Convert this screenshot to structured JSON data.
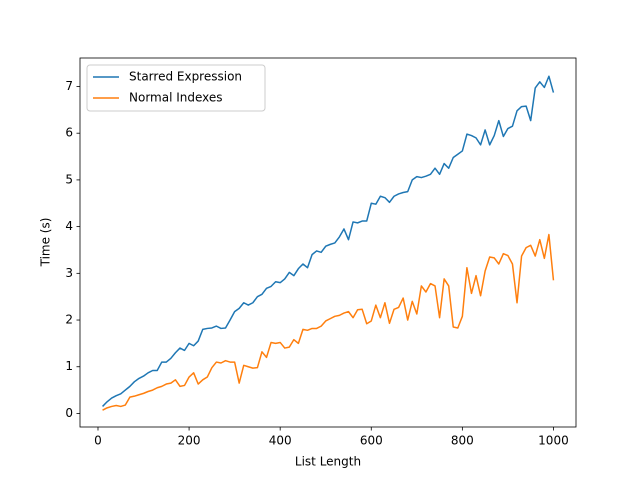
{
  "chart_data": {
    "type": "line",
    "x_label": "List Length",
    "y_label": "Time (s)",
    "x": [
      10,
      20,
      30,
      40,
      50,
      60,
      70,
      80,
      90,
      100,
      110,
      120,
      130,
      140,
      150,
      160,
      170,
      180,
      190,
      200,
      210,
      220,
      230,
      240,
      250,
      260,
      270,
      280,
      290,
      300,
      310,
      320,
      330,
      340,
      350,
      360,
      370,
      380,
      390,
      400,
      410,
      420,
      430,
      440,
      450,
      460,
      470,
      480,
      490,
      500,
      510,
      520,
      530,
      540,
      550,
      560,
      570,
      580,
      590,
      600,
      610,
      620,
      630,
      640,
      650,
      660,
      670,
      680,
      690,
      700,
      710,
      720,
      730,
      740,
      750,
      760,
      770,
      780,
      790,
      800,
      810,
      820,
      830,
      840,
      850,
      860,
      870,
      880,
      890,
      900,
      910,
      920,
      930,
      940,
      950,
      960,
      970,
      980,
      990,
      1000
    ],
    "series": [
      {
        "name": "Starred Expression",
        "color": "#1f77b4",
        "values": [
          0.15,
          0.25,
          0.33,
          0.38,
          0.42,
          0.5,
          0.58,
          0.68,
          0.75,
          0.8,
          0.87,
          0.92,
          0.92,
          1.1,
          1.1,
          1.18,
          1.3,
          1.4,
          1.35,
          1.5,
          1.45,
          1.55,
          1.8,
          1.82,
          1.83,
          1.87,
          1.82,
          1.83,
          2.0,
          2.18,
          2.25,
          2.37,
          2.32,
          2.37,
          2.5,
          2.55,
          2.68,
          2.72,
          2.82,
          2.8,
          2.88,
          3.02,
          2.95,
          3.1,
          3.2,
          3.12,
          3.4,
          3.48,
          3.45,
          3.58,
          3.62,
          3.65,
          3.78,
          3.95,
          3.72,
          4.1,
          4.08,
          4.12,
          4.12,
          4.5,
          4.48,
          4.65,
          4.62,
          4.52,
          4.65,
          4.7,
          4.73,
          4.75,
          5.0,
          5.07,
          5.05,
          5.08,
          5.12,
          5.25,
          5.12,
          5.35,
          5.25,
          5.48,
          5.55,
          5.62,
          5.98,
          5.95,
          5.9,
          5.75,
          6.07,
          5.75,
          5.95,
          6.27,
          5.93,
          6.1,
          6.15,
          6.48,
          6.57,
          6.58,
          6.27,
          6.97,
          7.1,
          6.98,
          7.22,
          6.87
        ]
      },
      {
        "name": "Normal Indexes",
        "color": "#ff7f0e",
        "values": [
          0.07,
          0.12,
          0.15,
          0.17,
          0.15,
          0.18,
          0.35,
          0.37,
          0.4,
          0.43,
          0.47,
          0.5,
          0.55,
          0.58,
          0.63,
          0.65,
          0.72,
          0.58,
          0.6,
          0.78,
          0.87,
          0.63,
          0.72,
          0.78,
          0.98,
          1.1,
          1.08,
          1.13,
          1.1,
          1.1,
          0.65,
          1.03,
          1.0,
          0.97,
          0.98,
          1.32,
          1.2,
          1.52,
          1.5,
          1.52,
          1.4,
          1.42,
          1.58,
          1.5,
          1.8,
          1.78,
          1.82,
          1.82,
          1.87,
          1.98,
          2.03,
          2.08,
          2.1,
          2.15,
          2.18,
          2.05,
          2.22,
          2.23,
          1.92,
          1.98,
          2.32,
          2.05,
          2.37,
          1.93,
          2.23,
          2.27,
          2.47,
          2.0,
          2.4,
          2.13,
          2.73,
          2.6,
          2.78,
          2.73,
          2.05,
          2.88,
          2.73,
          1.85,
          1.83,
          2.08,
          3.12,
          2.57,
          2.95,
          2.52,
          3.05,
          3.35,
          3.33,
          3.2,
          3.42,
          3.38,
          3.2,
          2.37,
          3.37,
          3.55,
          3.6,
          3.37,
          3.72,
          3.32,
          3.83,
          2.85
        ]
      }
    ],
    "xlim": [
      -39.5,
      1049.5
    ],
    "ylim": [
      -0.29,
      7.61
    ],
    "xticks": [
      0,
      200,
      400,
      600,
      800,
      1000
    ],
    "yticks": [
      0,
      1,
      2,
      3,
      4,
      5,
      6,
      7
    ],
    "legend": "upper left"
  }
}
